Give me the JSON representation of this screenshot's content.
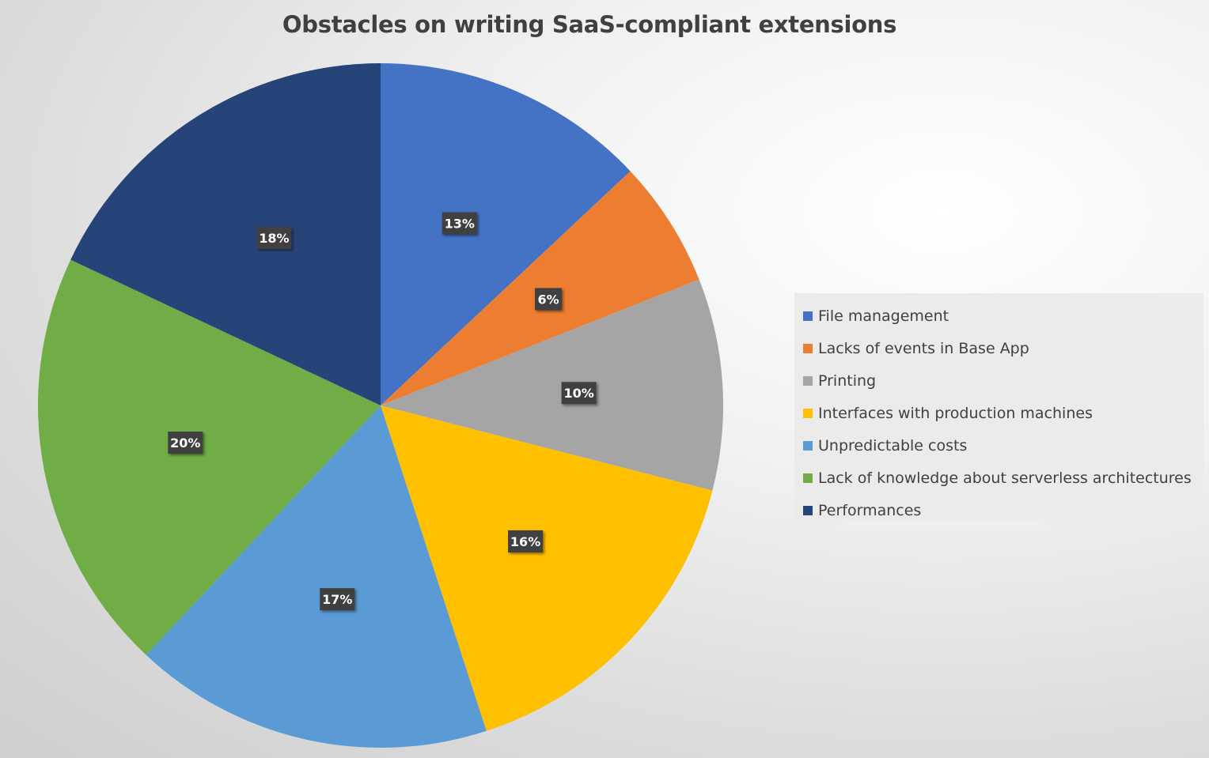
{
  "chart_data": {
    "type": "pie",
    "title": "Obstacles on writing SaaS-compliant extensions",
    "categories": [
      "File management",
      "Lacks of events in Base App",
      "Printing",
      "Interfaces with production machines",
      "Unpredictable costs",
      "Lack of knowledge about serverless architectures",
      "Performances"
    ],
    "values": [
      13,
      6,
      10,
      16,
      17,
      20,
      18
    ],
    "labels": [
      "13%",
      "6%",
      "10%",
      "16%",
      "17%",
      "20%",
      "18%"
    ],
    "unit": "%",
    "colors": [
      "#4472C4",
      "#ED7D31",
      "#A5A5A5",
      "#FFC000",
      "#5B9BD5",
      "#70AD47",
      "#264478"
    ],
    "legend_position": "right"
  }
}
